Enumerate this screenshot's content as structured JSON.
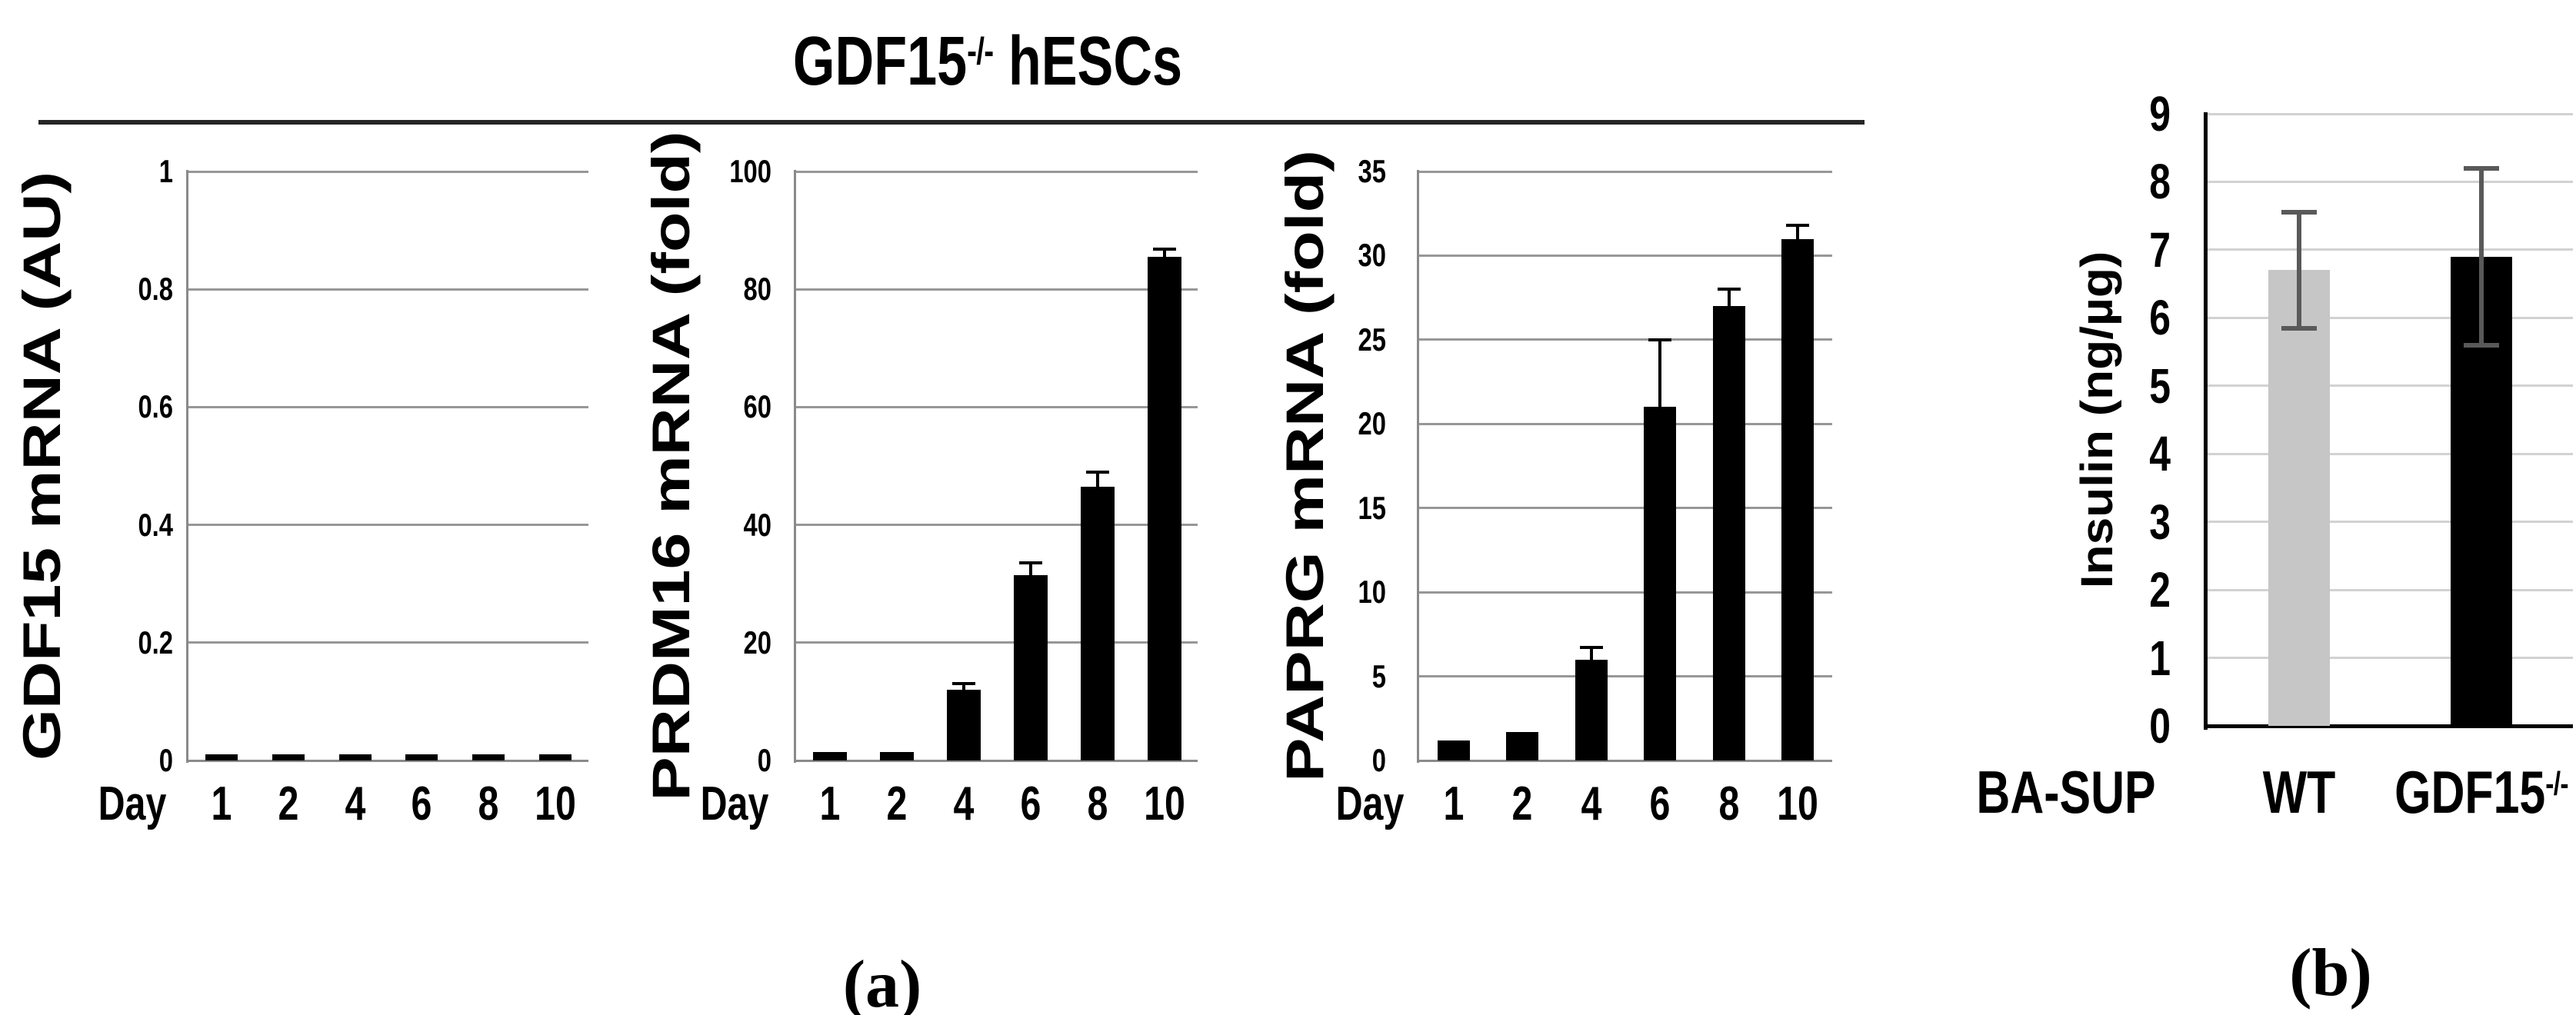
{
  "figure": {
    "panel_a": {
      "title": {
        "base": "GDF15",
        "sup": "-/-",
        "rest": " hESCs"
      },
      "label": "(a)"
    },
    "panel_b": {
      "label": "(b)"
    }
  },
  "chart_data": [
    {
      "type": "bar",
      "panel": "a",
      "group_title": "GDF15-/- hESCs",
      "ylabel": "GDF15 mRNA (AU)",
      "xlabel": "Day",
      "categories": [
        "1",
        "2",
        "4",
        "6",
        "8",
        "10"
      ],
      "values": [
        0.01,
        0.01,
        0.01,
        0.01,
        0.01,
        0.01
      ],
      "errors": [
        0,
        0,
        0,
        0,
        0,
        0
      ],
      "ylim": [
        0,
        1
      ],
      "yticks": [
        1,
        0.8,
        0.6,
        0.4,
        0.2,
        0
      ],
      "grid": true,
      "legend": "none",
      "bar_color": "#000000",
      "error_color": "#000000"
    },
    {
      "type": "bar",
      "panel": "a",
      "group_title": "GDF15-/- hESCs",
      "ylabel": "PRDM16 mRNA (fold)",
      "xlabel": "Day",
      "categories": [
        "1",
        "2",
        "4",
        "6",
        "8",
        "10"
      ],
      "values": [
        1.5,
        1.5,
        12,
        31.5,
        46.5,
        85.5
      ],
      "errors": [
        0,
        0,
        1,
        2,
        2.5,
        1.3
      ],
      "ylim": [
        0,
        100
      ],
      "yticks": [
        100,
        80,
        60,
        40,
        20,
        0
      ],
      "grid": true,
      "legend": "none",
      "bar_color": "#000000",
      "error_color": "#000000"
    },
    {
      "type": "bar",
      "panel": "a",
      "group_title": "GDF15-/- hESCs",
      "ylabel": "PAPRG mRNA (fold)",
      "xlabel": "Day",
      "categories": [
        "1",
        "2",
        "4",
        "6",
        "8",
        "10"
      ],
      "values": [
        1.2,
        1.7,
        6,
        21,
        27,
        31
      ],
      "errors": [
        0,
        0,
        0.7,
        4,
        1,
        0.8
      ],
      "ylim": [
        0,
        35
      ],
      "yticks": [
        35,
        30,
        25,
        20,
        15,
        10,
        5,
        0
      ],
      "grid": true,
      "legend": "none",
      "bar_color": "#000000",
      "error_color": "#000000"
    },
    {
      "type": "bar",
      "panel": "b",
      "ylabel": "Insulin (ng/µg)",
      "xlabel": "BA-SUP",
      "categories": [
        "WT",
        "GDF15-/-"
      ],
      "values": [
        6.7,
        6.9
      ],
      "errors": [
        0.85,
        1.3
      ],
      "ylim": [
        0,
        9
      ],
      "yticks": [
        9,
        8,
        7,
        6,
        5,
        4,
        3,
        2,
        1,
        0
      ],
      "grid": true,
      "legend": "none",
      "bar_colors": [
        "#c6c6c6",
        "#000000"
      ],
      "error_color": "#595959"
    }
  ]
}
